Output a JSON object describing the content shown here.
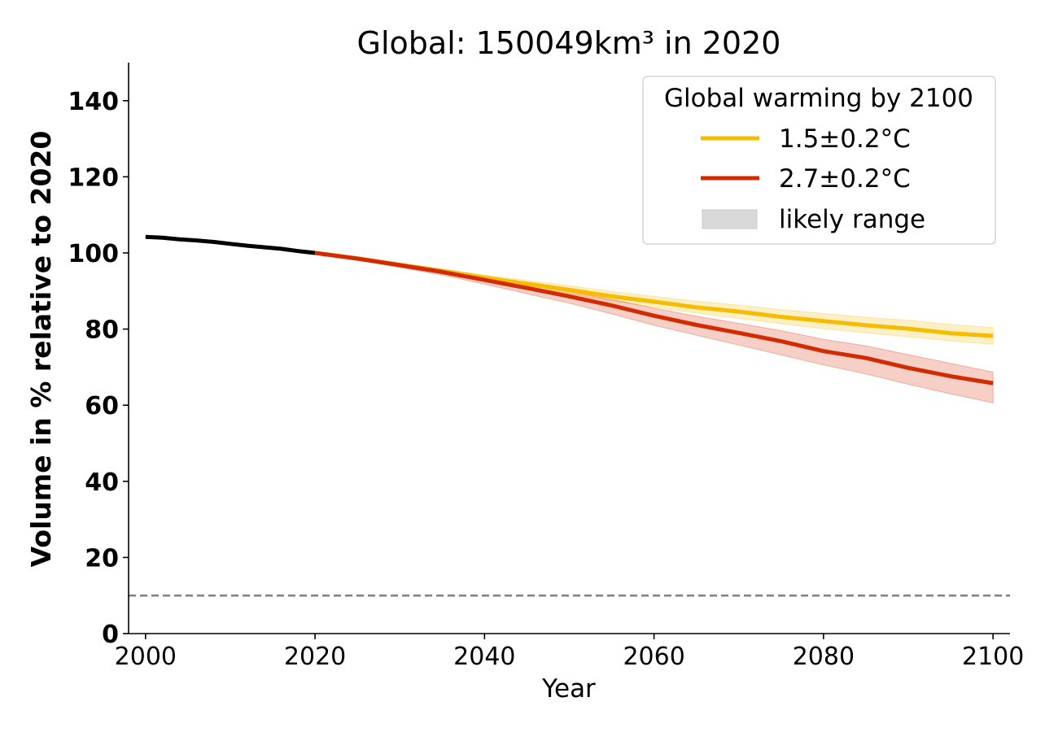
{
  "chart_data": {
    "type": "line",
    "title": "Global: 150049km³ in 2020",
    "xlabel": "Year",
    "ylabel": "Volume in % relative to 2020",
    "xlim": [
      1998,
      2102
    ],
    "ylim": [
      0,
      150
    ],
    "x_ticks": [
      2000,
      2020,
      2040,
      2060,
      2080,
      2100
    ],
    "y_ticks": [
      0,
      20,
      40,
      60,
      80,
      100,
      120,
      140
    ],
    "grid": false,
    "reference_line": {
      "y": 10,
      "style": "dashed",
      "color": "#808080"
    },
    "historical": {
      "color": "#000000",
      "x": [
        2000,
        2002,
        2004,
        2006,
        2008,
        2010,
        2012,
        2014,
        2016,
        2018,
        2020
      ],
      "values": [
        104.2,
        104.0,
        103.6,
        103.3,
        102.9,
        102.4,
        101.9,
        101.5,
        101.1,
        100.5,
        100.0
      ]
    },
    "series": [
      {
        "name": "1.5±0.2°C",
        "color": "#F5BC00",
        "x": [
          2020,
          2025,
          2030,
          2035,
          2040,
          2045,
          2050,
          2055,
          2060,
          2065,
          2070,
          2075,
          2080,
          2085,
          2090,
          2095,
          2100
        ],
        "values": [
          100.0,
          98.6,
          96.9,
          95.3,
          93.5,
          91.9,
          90.3,
          88.6,
          87.2,
          85.7,
          84.6,
          83.2,
          82.1,
          81.0,
          80.1,
          78.9,
          78.2
        ],
        "band_low": [
          100.0,
          98.4,
          96.5,
          94.8,
          92.8,
          91.0,
          89.2,
          87.4,
          85.8,
          84.2,
          82.8,
          81.4,
          80.1,
          79.0,
          78.0,
          76.9,
          76.0
        ],
        "band_high": [
          100.0,
          98.8,
          97.3,
          95.8,
          94.2,
          92.8,
          91.4,
          89.9,
          88.6,
          87.3,
          86.3,
          85.1,
          84.1,
          83.1,
          82.3,
          81.2,
          80.4
        ]
      },
      {
        "name": "2.7±0.2°C",
        "color": "#D42A00",
        "x": [
          2020,
          2025,
          2030,
          2035,
          2040,
          2045,
          2050,
          2055,
          2060,
          2065,
          2070,
          2075,
          2080,
          2085,
          2090,
          2095,
          2100
        ],
        "values": [
          100.0,
          98.5,
          96.8,
          95.0,
          92.9,
          90.8,
          88.6,
          86.2,
          83.5,
          81.1,
          79.0,
          76.8,
          74.2,
          72.4,
          69.8,
          67.6,
          65.8
        ],
        "band_low": [
          100.0,
          98.2,
          96.2,
          94.2,
          91.8,
          89.3,
          86.8,
          84.0,
          81.0,
          78.4,
          75.8,
          73.2,
          70.6,
          68.2,
          65.5,
          63.0,
          60.6
        ],
        "band_high": [
          100.0,
          98.8,
          97.3,
          95.7,
          93.8,
          91.9,
          89.9,
          87.8,
          85.5,
          83.4,
          81.5,
          79.6,
          77.3,
          75.6,
          73.3,
          71.0,
          68.7
        ]
      }
    ],
    "legend": {
      "title": "Global warming by 2100",
      "placement": "top-right",
      "entries": [
        {
          "label": "1.5±0.2°C",
          "kind": "line",
          "color": "#F5BC00"
        },
        {
          "label": "2.7±0.2°C",
          "kind": "line",
          "color": "#D42A00"
        },
        {
          "label": "likely range",
          "kind": "patch",
          "color": "#D9D9D9"
        }
      ]
    }
  }
}
